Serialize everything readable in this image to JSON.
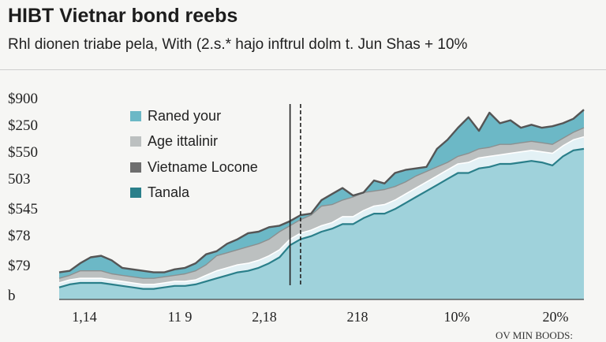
{
  "chart_data": {
    "type": "area",
    "title": "HIBT Vietnar bond reebs",
    "subtitle": "Rhl dionen triabe pela, With (2.s.* hajo inftrul dolm t. Jun Shas + 10%",
    "footnote": "OV MIN BOODS:",
    "ytick_labels": [
      "$900",
      "$250",
      "$550",
      "503",
      "$545",
      "$78",
      "$79",
      "b"
    ],
    "xtick_labels": [
      "1,14",
      "11 9",
      "2,18",
      "218",
      "10%",
      "20%"
    ],
    "grid": false,
    "legend_position": "top-left",
    "x": [
      0,
      2,
      4,
      6,
      8,
      10,
      12,
      14,
      16,
      18,
      20,
      22,
      24,
      26,
      28,
      30,
      32,
      34,
      36,
      38,
      40,
      42,
      44,
      46,
      48,
      50,
      52,
      54,
      56,
      58,
      60,
      62,
      64,
      66,
      68,
      70,
      72,
      74,
      76,
      78,
      80,
      82,
      84,
      86,
      88,
      90,
      92,
      94,
      96,
      98,
      100
    ],
    "series": [
      {
        "name": "Tanala",
        "color": "#9fd2db",
        "values": [
          8,
          10,
          11,
          11,
          11,
          10,
          9,
          8,
          7,
          7,
          8,
          9,
          9,
          10,
          12,
          14,
          16,
          18,
          19,
          21,
          24,
          28,
          36,
          40,
          42,
          45,
          47,
          50,
          50,
          54,
          57,
          57,
          60,
          64,
          68,
          72,
          76,
          80,
          84,
          84,
          87,
          88,
          90,
          90,
          91,
          92,
          91,
          89,
          95,
          99,
          100
        ]
      },
      {
        "name": "Vietname Locone",
        "color": "#e3f1f5",
        "values": [
          11,
          13,
          14,
          14,
          14,
          13,
          12,
          11,
          10,
          10,
          11,
          12,
          12,
          13,
          16,
          19,
          21,
          23,
          24,
          26,
          29,
          33,
          40,
          44,
          46,
          49,
          51,
          55,
          55,
          59,
          62,
          63,
          66,
          70,
          74,
          78,
          82,
          86,
          90,
          91,
          94,
          95,
          96,
          97,
          98,
          99,
          98,
          97,
          102,
          106,
          108
        ]
      },
      {
        "name": "Age ittalinir",
        "color": "#bcc0c0",
        "values": [
          14,
          16,
          19,
          19,
          19,
          17,
          16,
          15,
          14,
          14,
          15,
          16,
          17,
          19,
          23,
          29,
          31,
          33,
          35,
          37,
          40,
          45,
          49,
          53,
          56,
          62,
          63,
          66,
          68,
          71,
          72,
          73,
          75,
          78,
          82,
          85,
          88,
          91,
          95,
          97,
          100,
          101,
          103,
          103,
          104,
          105,
          104,
          103,
          107,
          111,
          114
        ]
      },
      {
        "name": "Raned your",
        "color": "#6cb8c6",
        "values": [
          18,
          19,
          24,
          28,
          29,
          26,
          21,
          20,
          19,
          18,
          18,
          20,
          21,
          24,
          30,
          32,
          37,
          40,
          44,
          45,
          48,
          49,
          52,
          56,
          57,
          66,
          70,
          74,
          69,
          71,
          79,
          77,
          84,
          86,
          87,
          88,
          100,
          106,
          114,
          121,
          112,
          124,
          117,
          119,
          114,
          116,
          114,
          115,
          117,
          120,
          126
        ]
      }
    ],
    "ylim": [
      0,
      135
    ],
    "markers": [
      {
        "x": 44,
        "style": "solid"
      },
      {
        "x": 46,
        "style": "dashed"
      }
    ]
  }
}
